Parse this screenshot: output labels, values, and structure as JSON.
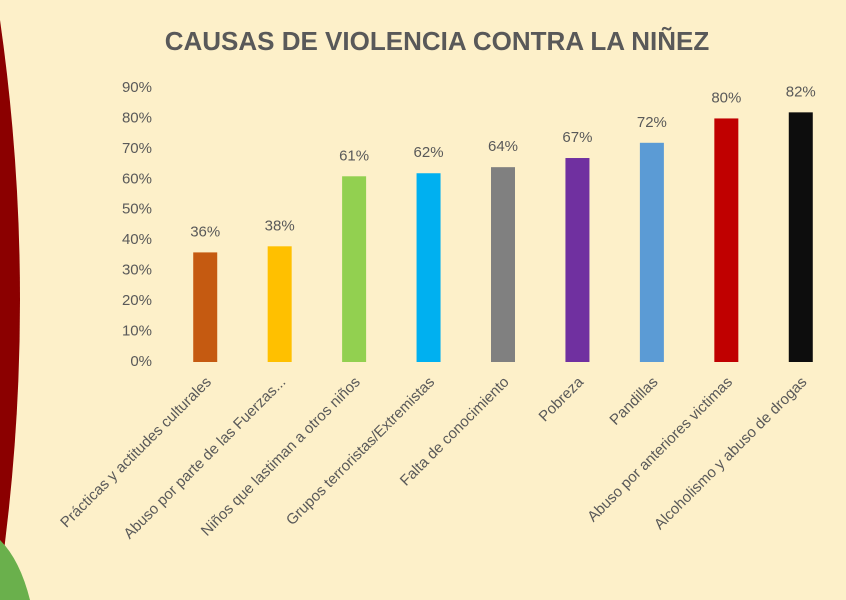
{
  "chart_data": {
    "type": "bar",
    "title": "CAUSAS DE VIOLENCIA CONTRA LA NIÑEZ",
    "categories": [
      "Prácticas y actitudes culturales",
      "Abuso por parte de las Fuerzas...",
      "Niños que lastiman a otros niños",
      "Grupos terroristas/Extremistas",
      "Falta de conocimiento",
      "Pobreza",
      "Pandillas",
      "Abuso por anteriores victimas",
      "Alcoholismo y abuso de drogas"
    ],
    "values": [
      36,
      38,
      61,
      62,
      64,
      67,
      72,
      80,
      82
    ],
    "value_labels": [
      "36%",
      "38%",
      "61%",
      "62%",
      "64%",
      "67%",
      "72%",
      "80%",
      "82%"
    ],
    "colors": [
      "#c55a11",
      "#ffc000",
      "#92d050",
      "#00b0f0",
      "#808080",
      "#7030a0",
      "#5b9bd5",
      "#c00000",
      "#0d0d0d"
    ],
    "ylim": [
      0,
      90
    ],
    "yticks": [
      {
        "value": 0,
        "label": "0%"
      },
      {
        "value": 10,
        "label": "10%"
      },
      {
        "value": 20,
        "label": "20%"
      },
      {
        "value": 30,
        "label": "30%"
      },
      {
        "value": 40,
        "label": "40%"
      },
      {
        "value": 50,
        "label": "50%"
      },
      {
        "value": 60,
        "label": "60%"
      },
      {
        "value": 70,
        "label": "70%"
      },
      {
        "value": 80,
        "label": "80%"
      },
      {
        "value": 90,
        "label": "90%"
      }
    ],
    "grid": false
  }
}
